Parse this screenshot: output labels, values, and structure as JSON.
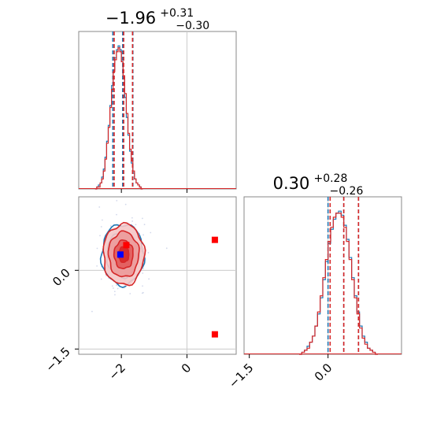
{
  "chart_data": [
    {
      "type": "histogram",
      "panel": "top-left",
      "title_main": "−1.96",
      "title_sup": "+0.31",
      "title_sub": "−0.30",
      "xlim": [
        -3.3,
        1.5
      ],
      "truth": 0.0,
      "series": [
        {
          "name": "",
          "color": "#1f77b4",
          "bin_start": -2.8,
          "bin_width": 0.05,
          "values": [
            0,
            1,
            2,
            3,
            6,
            10,
            16,
            24,
            32,
            42,
            52,
            60,
            66,
            70,
            72,
            70,
            64,
            56,
            46,
            36,
            27,
            19,
            13,
            8,
            5,
            3,
            2,
            1,
            0
          ],
          "quantiles": [
            -2.26,
            -1.96,
            -1.65
          ]
        },
        {
          "name": "",
          "color": "#d62728",
          "bin_start": -2.8,
          "bin_width": 0.05,
          "values": [
            0,
            1,
            1,
            3,
            5,
            9,
            15,
            23,
            31,
            41,
            50,
            59,
            65,
            69,
            71,
            69,
            64,
            57,
            48,
            38,
            28,
            20,
            14,
            9,
            5,
            3,
            2,
            1,
            0
          ],
          "quantiles": [
            -2.22,
            -1.93,
            -1.66
          ]
        }
      ]
    },
    {
      "type": "contour",
      "panel": "bottom-left",
      "xlim": [
        -3.3,
        1.5
      ],
      "ylim": [
        -1.6,
        1.4
      ],
      "truth": [
        0.0,
        0.0
      ],
      "xticks": [
        "−2",
        "0"
      ],
      "yticks": [
        "−1.5",
        "0.0"
      ],
      "series": [
        {
          "name": "",
          "color": "#1f77b4",
          "center": [
            -1.96,
            0.3
          ],
          "sigma": [
            0.3,
            0.27
          ],
          "peak_marker": [
            -2.03,
            0.3
          ]
        },
        {
          "name": "",
          "color": "#d62728",
          "center": [
            -1.93,
            0.3
          ],
          "sigma": [
            0.29,
            0.27
          ],
          "peak_marker": [
            -1.85,
            0.48
          ]
        }
      ],
      "extra_markers": [
        [
          0.85,
          0.58
        ],
        [
          0.85,
          -1.22
        ]
      ]
    },
    {
      "type": "histogram",
      "panel": "bottom-right",
      "title_main": "0.30",
      "title_sup": "+0.28",
      "title_sub": "−0.26",
      "xlim": [
        -1.6,
        1.4
      ],
      "truth": 0.0,
      "xticks": [
        "−1.5",
        "0.0"
      ],
      "series": [
        {
          "name": "",
          "color": "#1f77b4",
          "bin_start": -0.55,
          "bin_width": 0.05,
          "values": [
            0,
            1,
            2,
            4,
            6,
            9,
            14,
            20,
            28,
            37,
            46,
            55,
            62,
            67,
            70,
            71,
            69,
            64,
            57,
            48,
            38,
            29,
            21,
            14,
            9,
            6,
            3,
            2,
            1,
            0
          ],
          "quantiles": [
            0.0,
            0.3,
            0.58
          ]
        },
        {
          "name": "",
          "color": "#d62728",
          "bin_start": -0.55,
          "bin_width": 0.05,
          "values": [
            0,
            1,
            2,
            3,
            6,
            9,
            14,
            21,
            29,
            38,
            47,
            56,
            63,
            68,
            70,
            70,
            68,
            63,
            56,
            47,
            37,
            28,
            20,
            13,
            8,
            5,
            3,
            2,
            1,
            0
          ],
          "quantiles": [
            0.04,
            0.3,
            0.58
          ]
        }
      ]
    }
  ]
}
